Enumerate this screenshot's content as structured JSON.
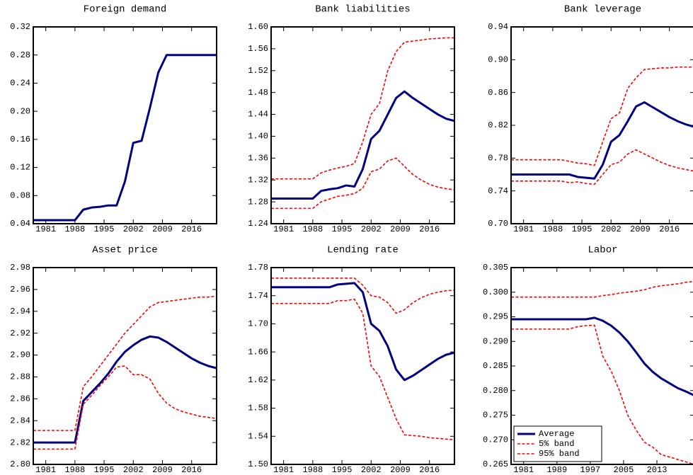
{
  "chart_data": [
    {
      "type": "line",
      "title": "Foreign demand",
      "x": [
        1978,
        1980,
        1982,
        1984,
        1986,
        1988,
        1990,
        1992,
        1994,
        1996,
        1998,
        2000,
        2002,
        2004,
        2006,
        2008,
        2010,
        2012,
        2014,
        2016,
        2018,
        2020,
        2022
      ],
      "xlim": [
        1978,
        2022
      ],
      "xticks": [
        1981,
        1988,
        1995,
        2002,
        2009,
        2016
      ],
      "ylim": [
        0.04,
        0.32
      ],
      "yticks": [
        0.04,
        0.08,
        0.12,
        0.16,
        {
          "value": 0.2,
          "label": "0.20"
        },
        0.24,
        0.28,
        0.32
      ],
      "series": [
        {
          "color": "#000080",
          "values": [
            0.045,
            0.045,
            0.045,
            0.045,
            0.045,
            0.045,
            0.06,
            0.063,
            0.064,
            0.066,
            0.066,
            0.1,
            0.155,
            0.158,
            0.205,
            0.255,
            0.28,
            0.28,
            0.28,
            0.28,
            0.28,
            0.28,
            0.28
          ]
        }
      ]
    },
    {
      "type": "line",
      "title": "Bank liabilities",
      "x": [
        1978,
        1980,
        1982,
        1984,
        1986,
        1988,
        1990,
        1992,
        1994,
        1996,
        1998,
        2000,
        2002,
        2004,
        2006,
        2008,
        2010,
        2012,
        2014,
        2016,
        2018,
        2020,
        2022
      ],
      "xlim": [
        1978,
        2022
      ],
      "xticks": [
        1981,
        1988,
        1995,
        2002,
        2009,
        2016
      ],
      "ylim": [
        1.24,
        1.6
      ],
      "yticks": [
        1.24,
        1.28,
        1.32,
        1.36,
        {
          "value": 1.4,
          "label": "1.40"
        },
        1.44,
        1.48,
        1.52,
        1.56,
        {
          "value": 1.6,
          "label": "1.60"
        }
      ],
      "series": [
        {
          "color": "#000080",
          "values": [
            1.286,
            1.286,
            1.286,
            1.286,
            1.286,
            1.286,
            1.3,
            1.303,
            1.305,
            1.31,
            1.308,
            1.34,
            1.395,
            1.41,
            1.44,
            1.47,
            1.482,
            1.47,
            1.46,
            1.45,
            1.44,
            1.432,
            1.428
          ]
        },
        {
          "color": "#ff0000",
          "values": [
            1.268,
            1.268,
            1.268,
            1.268,
            1.268,
            1.268,
            1.28,
            1.285,
            1.29,
            1.292,
            1.295,
            1.305,
            1.335,
            1.34,
            1.355,
            1.36,
            1.345,
            1.33,
            1.32,
            1.312,
            1.307,
            1.304,
            1.302
          ]
        },
        {
          "color": "#ff0000",
          "values": [
            1.322,
            1.322,
            1.322,
            1.322,
            1.322,
            1.322,
            1.333,
            1.338,
            1.342,
            1.345,
            1.35,
            1.39,
            1.44,
            1.46,
            1.52,
            1.555,
            1.572,
            1.574,
            1.576,
            1.578,
            1.579,
            1.58,
            1.58
          ]
        }
      ]
    },
    {
      "type": "line",
      "title": "Bank leverage",
      "x": [
        1978,
        1980,
        1982,
        1984,
        1986,
        1988,
        1990,
        1992,
        1994,
        1996,
        1998,
        2000,
        2002,
        2004,
        2006,
        2008,
        2010,
        2012,
        2014,
        2016,
        2018,
        2020,
        2022
      ],
      "xlim": [
        1978,
        2022
      ],
      "xticks": [
        1981,
        1988,
        1995,
        2002,
        2009,
        2016
      ],
      "ylim": [
        0.7,
        0.94
      ],
      "yticks": [
        {
          "value": 0.7,
          "label": "0.70"
        },
        0.74,
        0.78,
        0.82,
        0.86,
        {
          "value": 0.9,
          "label": "0.90"
        },
        0.94
      ],
      "series": [
        {
          "color": "#000080",
          "values": [
            0.76,
            0.76,
            0.76,
            0.76,
            0.76,
            0.76,
            0.76,
            0.76,
            0.757,
            0.756,
            0.755,
            0.772,
            0.8,
            0.808,
            0.825,
            0.843,
            0.848,
            0.842,
            0.836,
            0.83,
            0.825,
            0.821,
            0.818
          ]
        },
        {
          "color": "#ff0000",
          "values": [
            0.752,
            0.752,
            0.752,
            0.752,
            0.752,
            0.752,
            0.752,
            0.75,
            0.751,
            0.749,
            0.748,
            0.76,
            0.772,
            0.775,
            0.785,
            0.79,
            0.785,
            0.78,
            0.775,
            0.771,
            0.768,
            0.766,
            0.764
          ]
        },
        {
          "color": "#ff0000",
          "values": [
            0.778,
            0.778,
            0.778,
            0.778,
            0.778,
            0.778,
            0.778,
            0.776,
            0.774,
            0.773,
            0.771,
            0.8,
            0.828,
            0.835,
            0.865,
            0.878,
            0.888,
            0.889,
            0.89,
            0.89,
            0.891,
            0.891,
            0.891
          ]
        }
      ]
    },
    {
      "type": "line",
      "title": "Asset price",
      "x": [
        1978,
        1980,
        1982,
        1984,
        1986,
        1988,
        1990,
        1992,
        1994,
        1996,
        1998,
        2000,
        2002,
        2004,
        2006,
        2008,
        2010,
        2012,
        2014,
        2016,
        2018,
        2020,
        2022
      ],
      "xlim": [
        1978,
        2022
      ],
      "xticks": [
        1981,
        1988,
        1995,
        2002,
        2009,
        2016
      ],
      "ylim": [
        2.8,
        2.98
      ],
      "yticks": [
        {
          "value": 2.8,
          "label": "2.80"
        },
        2.82,
        2.84,
        2.86,
        2.88,
        {
          "value": 2.9,
          "label": "2.90"
        },
        2.92,
        2.94,
        2.96,
        2.98
      ],
      "series": [
        {
          "color": "#000080",
          "values": [
            2.82,
            2.82,
            2.82,
            2.82,
            2.82,
            2.82,
            2.858,
            2.866,
            2.874,
            2.883,
            2.894,
            2.903,
            2.909,
            2.914,
            2.917,
            2.916,
            2.912,
            2.907,
            2.902,
            2.897,
            2.893,
            2.89,
            2.888
          ]
        },
        {
          "color": "#ff0000",
          "values": [
            2.814,
            2.814,
            2.814,
            2.814,
            2.814,
            2.814,
            2.855,
            2.863,
            2.872,
            2.88,
            2.889,
            2.89,
            2.882,
            2.882,
            2.878,
            2.865,
            2.856,
            2.851,
            2.848,
            2.846,
            2.844,
            2.843,
            2.842
          ]
        },
        {
          "color": "#ff0000",
          "values": [
            2.831,
            2.831,
            2.831,
            2.831,
            2.831,
            2.831,
            2.871,
            2.88,
            2.89,
            2.9,
            2.91,
            2.92,
            2.928,
            2.936,
            2.944,
            2.948,
            2.949,
            2.95,
            2.951,
            2.952,
            2.953,
            2.953,
            2.954
          ]
        }
      ]
    },
    {
      "type": "line",
      "title": "Lending rate",
      "x": [
        1978,
        1980,
        1982,
        1984,
        1986,
        1988,
        1990,
        1992,
        1994,
        1996,
        1998,
        2000,
        2002,
        2004,
        2006,
        2008,
        2010,
        2012,
        2014,
        2016,
        2018,
        2020,
        2022
      ],
      "xlim": [
        1978,
        2022
      ],
      "xticks": [
        1981,
        1988,
        1995,
        2002,
        2009,
        2016
      ],
      "ylim": [
        1.5,
        1.78
      ],
      "yticks": [
        {
          "value": 1.5,
          "label": "1.50"
        },
        1.54,
        1.58,
        1.62,
        1.66,
        {
          "value": 1.7,
          "label": "1.70"
        },
        1.74,
        1.78
      ],
      "series": [
        {
          "color": "#000080",
          "values": [
            1.752,
            1.752,
            1.752,
            1.752,
            1.752,
            1.752,
            1.752,
            1.752,
            1.756,
            1.757,
            1.758,
            1.745,
            1.7,
            1.69,
            1.668,
            1.635,
            1.62,
            1.626,
            1.634,
            1.642,
            1.65,
            1.656,
            1.659
          ]
        },
        {
          "color": "#ff0000",
          "values": [
            1.729,
            1.729,
            1.729,
            1.729,
            1.729,
            1.729,
            1.729,
            1.729,
            1.733,
            1.733,
            1.735,
            1.715,
            1.64,
            1.625,
            1.595,
            1.565,
            1.542,
            1.541,
            1.54,
            1.538,
            1.537,
            1.536,
            1.535
          ]
        },
        {
          "color": "#ff0000",
          "values": [
            1.765,
            1.765,
            1.765,
            1.765,
            1.765,
            1.765,
            1.765,
            1.765,
            1.765,
            1.765,
            1.765,
            1.755,
            1.74,
            1.738,
            1.73,
            1.715,
            1.72,
            1.73,
            1.737,
            1.742,
            1.745,
            1.747,
            1.748
          ]
        }
      ]
    },
    {
      "type": "line",
      "title": "Labor",
      "x": [
        1978,
        1980,
        1982,
        1984,
        1986,
        1988,
        1990,
        1992,
        1994,
        1996,
        1998,
        2000,
        2002,
        2004,
        2006,
        2008,
        2010,
        2012,
        2014,
        2016,
        2018,
        2020,
        2022
      ],
      "xlim": [
        1978,
        2022
      ],
      "xticks": [
        1981,
        1989,
        1997,
        2005,
        2013
      ],
      "ylim": [
        0.265,
        0.305
      ],
      "yticks": [
        0.265,
        {
          "value": 0.27,
          "label": "0.270"
        },
        0.275,
        {
          "value": 0.28,
          "label": "0.280"
        },
        0.285,
        {
          "value": 0.29,
          "label": "0.290"
        },
        0.295,
        {
          "value": 0.3,
          "label": "0.300"
        },
        0.305
      ],
      "legend": "lower left",
      "series": [
        {
          "name": "Average",
          "color": "#000080",
          "values": [
            0.2945,
            0.2945,
            0.2945,
            0.2945,
            0.2945,
            0.2945,
            0.2945,
            0.2945,
            0.2945,
            0.2945,
            0.2948,
            0.2942,
            0.2932,
            0.2918,
            0.29,
            0.2878,
            0.2855,
            0.2838,
            0.2825,
            0.2815,
            0.2805,
            0.2798,
            0.279
          ]
        },
        {
          "name": "5% band",
          "color": "#ff0000",
          "values": [
            0.2925,
            0.2925,
            0.2925,
            0.2925,
            0.2925,
            0.2925,
            0.2925,
            0.2925,
            0.293,
            0.2932,
            0.2933,
            0.287,
            0.284,
            0.28,
            0.275,
            0.272,
            0.2695,
            0.2685,
            0.267,
            0.2665,
            0.266,
            0.2655,
            0.265
          ]
        },
        {
          "name": "95% band",
          "color": "#ff0000",
          "values": [
            0.299,
            0.299,
            0.299,
            0.299,
            0.299,
            0.299,
            0.299,
            0.299,
            0.299,
            0.299,
            0.299,
            0.2993,
            0.2995,
            0.2998,
            0.3,
            0.3002,
            0.3005,
            0.301,
            0.3013,
            0.3015,
            0.3017,
            0.302,
            0.3022
          ]
        }
      ]
    }
  ]
}
